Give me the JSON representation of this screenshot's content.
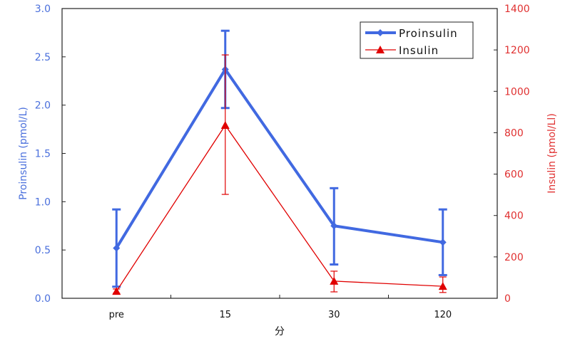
{
  "chart_data": {
    "type": "line",
    "categories": [
      "pre",
      "15",
      "30",
      "120"
    ],
    "xlabel": "分",
    "ylabel_left": "Proinsulin (pmol/L)",
    "ylabel_right": "Insulin (pmol/Ll)",
    "ylim_left": [
      0,
      3.0
    ],
    "yticks_left": [
      "0.0",
      "0.5",
      "1.0",
      "1.5",
      "2.0",
      "2.5",
      "3.0"
    ],
    "ylim_right": [
      0,
      1400
    ],
    "yticks_right": [
      "0",
      "200",
      "400",
      "600",
      "800",
      "1000",
      "1200",
      "1400"
    ],
    "grid": false,
    "legend_position": "top-right",
    "series": [
      {
        "name": "Proinsulin",
        "axis": "left",
        "color": "#4169E1",
        "marker": "diamond",
        "values": [
          0.52,
          2.37,
          0.75,
          0.58
        ],
        "error_upper": [
          0.92,
          2.77,
          1.14,
          0.92
        ],
        "error_lower": [
          0.12,
          1.97,
          0.35,
          0.24
        ]
      },
      {
        "name": "Insulin",
        "axis": "right",
        "color": "#E00000",
        "marker": "triangle",
        "values": [
          34,
          836,
          83,
          58
        ],
        "error_upper": [
          45,
          1176,
          131,
          103
        ],
        "error_lower": [
          25,
          502,
          31,
          28
        ]
      }
    ]
  }
}
